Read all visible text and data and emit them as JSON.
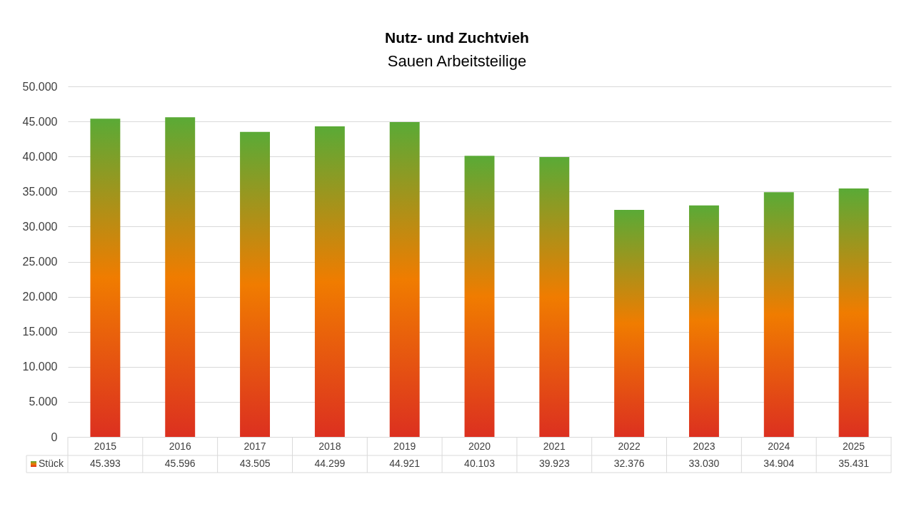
{
  "chart_data": {
    "type": "bar",
    "title": "Nutz- und Zuchtvieh",
    "subtitle": "Sauen Arbeitsteilige",
    "categories": [
      "2015",
      "2016",
      "2017",
      "2018",
      "2019",
      "2020",
      "2021",
      "2022",
      "2023",
      "2024",
      "2025"
    ],
    "series": [
      {
        "name": "Stück",
        "color": "#f07c00",
        "values": [
          45393,
          45596,
          43505,
          44299,
          44921,
          40103,
          39923,
          32376,
          33030,
          34904,
          35431
        ],
        "value_labels": [
          "45.393",
          "45.596",
          "43.505",
          "44.299",
          "44.921",
          "40.103",
          "39.923",
          "32.376",
          "33.030",
          "34.904",
          "35.431"
        ]
      }
    ],
    "ylim": [
      0,
      50000
    ],
    "yticks": [
      0,
      {
        "value": 5000,
        "label": "5.000"
      },
      {
        "value": 10000,
        "label": "10.000"
      },
      {
        "value": 15000,
        "label": "15.000"
      },
      {
        "value": 20000,
        "label": "20.000"
      },
      {
        "value": 25000,
        "label": "25.000"
      },
      {
        "value": 30000,
        "label": "30.000"
      },
      {
        "value": 35000,
        "label": "35.000"
      },
      {
        "value": 40000,
        "label": "40.000"
      },
      {
        "value": 45000,
        "label": "45.000"
      },
      {
        "value": 50000,
        "label": "50.000"
      }
    ],
    "grid": "y",
    "legend": "bottom left"
  }
}
